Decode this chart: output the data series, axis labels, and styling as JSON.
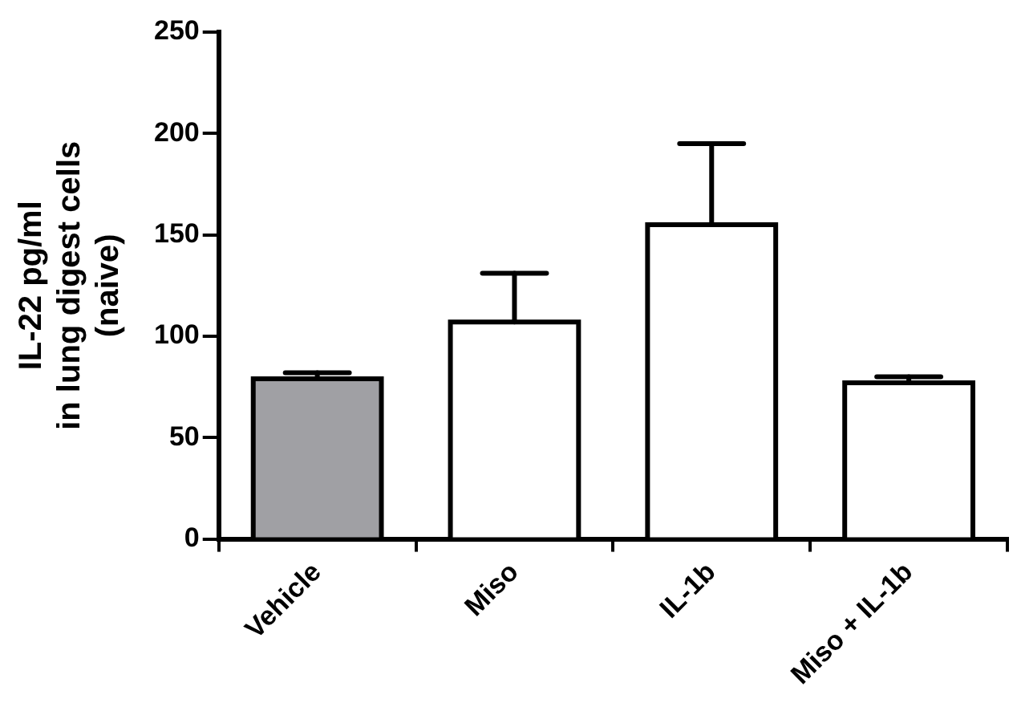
{
  "chart_data": {
    "type": "bar",
    "ylabel": "IL-22 pg/ml\nin lung digest cells\n(naive)",
    "categories": [
      "Vehicle",
      "Miso",
      "IL-1b",
      "Miso + IL-1b"
    ],
    "values": [
      79,
      107,
      155,
      77
    ],
    "colors": [
      "#a0a0a4",
      "#ffffff",
      "#ffffff",
      "#ffffff"
    ],
    "errors": [
      [
        79,
        82
      ],
      [
        107,
        131
      ],
      [
        155,
        195
      ],
      [
        77,
        80
      ]
    ],
    "ylim": [
      0,
      250
    ],
    "yticks": [
      0,
      50,
      100,
      150,
      200,
      250
    ],
    "grid": false,
    "legend": false
  }
}
